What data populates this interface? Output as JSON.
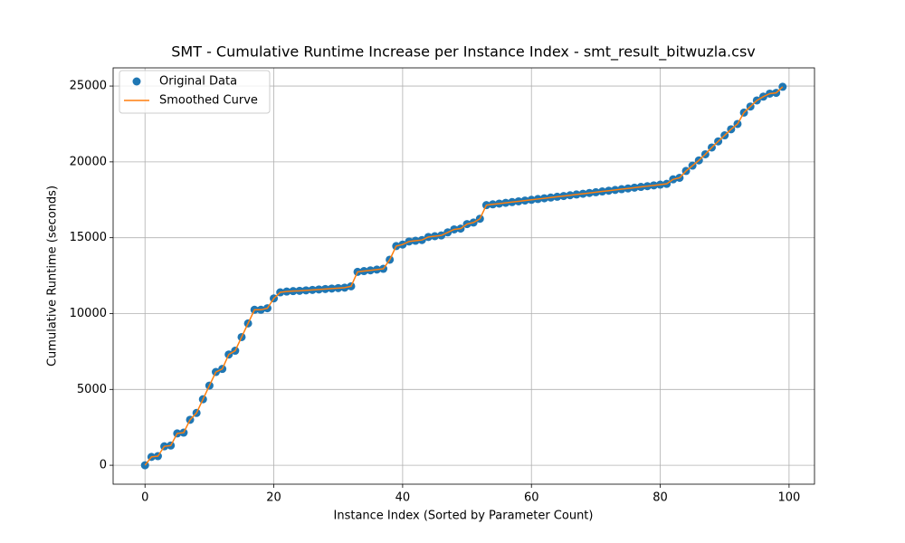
{
  "chart_data": {
    "type": "scatter",
    "title": "SMT - Cumulative Runtime Increase per Instance Index - smt_result_bitwuzla.csv",
    "xlabel": "Instance Index (Sorted by Parameter Count)",
    "ylabel": "Cumulative Runtime (seconds)",
    "x": [
      0,
      1,
      2,
      3,
      4,
      5,
      6,
      7,
      8,
      9,
      10,
      11,
      12,
      13,
      14,
      15,
      16,
      17,
      18,
      19,
      20,
      21,
      22,
      23,
      24,
      25,
      26,
      27,
      28,
      29,
      30,
      31,
      32,
      33,
      34,
      35,
      36,
      37,
      38,
      39,
      40,
      41,
      42,
      43,
      44,
      45,
      46,
      47,
      48,
      49,
      50,
      51,
      52,
      53,
      54,
      55,
      56,
      57,
      58,
      59,
      60,
      61,
      62,
      63,
      64,
      65,
      66,
      67,
      68,
      69,
      70,
      71,
      72,
      73,
      74,
      75,
      76,
      77,
      78,
      79,
      80,
      81,
      82,
      83,
      84,
      85,
      86,
      87,
      88,
      89,
      90,
      91,
      92,
      93,
      94,
      95,
      96,
      97,
      98,
      99
    ],
    "series": [
      {
        "name": "Original Data",
        "mode": "markers",
        "color": "#1f77b4",
        "values": [
          0,
          550,
          600,
          1250,
          1300,
          2100,
          2150,
          3000,
          3450,
          4350,
          5250,
          6150,
          6350,
          7300,
          7550,
          8450,
          9350,
          10250,
          10250,
          10350,
          11000,
          11400,
          11450,
          11480,
          11500,
          11530,
          11560,
          11590,
          11620,
          11650,
          11680,
          11710,
          11800,
          12750,
          12800,
          12850,
          12900,
          12950,
          13550,
          14450,
          14550,
          14750,
          14800,
          14850,
          15050,
          15100,
          15150,
          15350,
          15550,
          15600,
          15900,
          16000,
          16250,
          17150,
          17200,
          17250,
          17300,
          17350,
          17400,
          17450,
          17500,
          17550,
          17600,
          17650,
          17700,
          17750,
          17800,
          17850,
          17900,
          17950,
          18000,
          18050,
          18100,
          18150,
          18200,
          18250,
          18300,
          18350,
          18400,
          18450,
          18500,
          18550,
          18850,
          18950,
          19400,
          19750,
          20100,
          20500,
          20950,
          21350,
          21750,
          22150,
          22500,
          23250,
          23650,
          24050,
          24300,
          24500,
          24550,
          24950
        ]
      },
      {
        "name": "Smoothed Curve",
        "mode": "line",
        "color": "#ff7f0e",
        "values": [
          0,
          550,
          600,
          1250,
          1300,
          2100,
          2150,
          3000,
          3450,
          4350,
          5250,
          6150,
          6350,
          7300,
          7550,
          8450,
          9350,
          10250,
          10250,
          10350,
          11000,
          11400,
          11450,
          11480,
          11500,
          11530,
          11560,
          11590,
          11620,
          11650,
          11680,
          11710,
          11800,
          12750,
          12800,
          12850,
          12900,
          12950,
          13550,
          14450,
          14550,
          14750,
          14800,
          14850,
          15050,
          15100,
          15150,
          15350,
          15550,
          15600,
          15900,
          16000,
          16250,
          17150,
          17200,
          17250,
          17300,
          17350,
          17400,
          17450,
          17500,
          17550,
          17600,
          17650,
          17700,
          17750,
          17800,
          17850,
          17900,
          17950,
          18000,
          18050,
          18100,
          18150,
          18200,
          18250,
          18300,
          18350,
          18400,
          18450,
          18500,
          18550,
          18850,
          18950,
          19400,
          19750,
          20100,
          20500,
          20950,
          21350,
          21750,
          22150,
          22500,
          23250,
          23650,
          24050,
          24300,
          24500,
          24550,
          24950
        ]
      }
    ],
    "xlim": [
      -4.95,
      103.95
    ],
    "xticks": [
      0,
      20,
      40,
      60,
      80,
      100
    ],
    "ylim": [
      -1247,
      26197
    ],
    "yticks": [
      0,
      5000,
      10000,
      15000,
      20000,
      25000
    ],
    "grid": true,
    "legend": "upper left"
  }
}
